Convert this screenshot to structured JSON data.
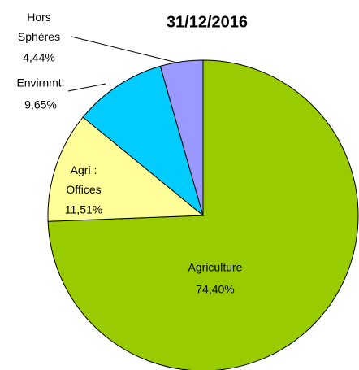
{
  "chart_data": {
    "type": "pie",
    "title": "31/12/2016",
    "categories": [
      "Agriculture",
      "Agri : Offices",
      "Envirnmt.",
      "Hors Sphères"
    ],
    "values": [
      74.4,
      11.51,
      9.65,
      4.44
    ],
    "value_labels": [
      "74,40%",
      "11,51%",
      "9,65%",
      "4,44%"
    ],
    "colors": [
      "#99cc00",
      "#ffff99",
      "#00ccff",
      "#9999ff"
    ]
  }
}
